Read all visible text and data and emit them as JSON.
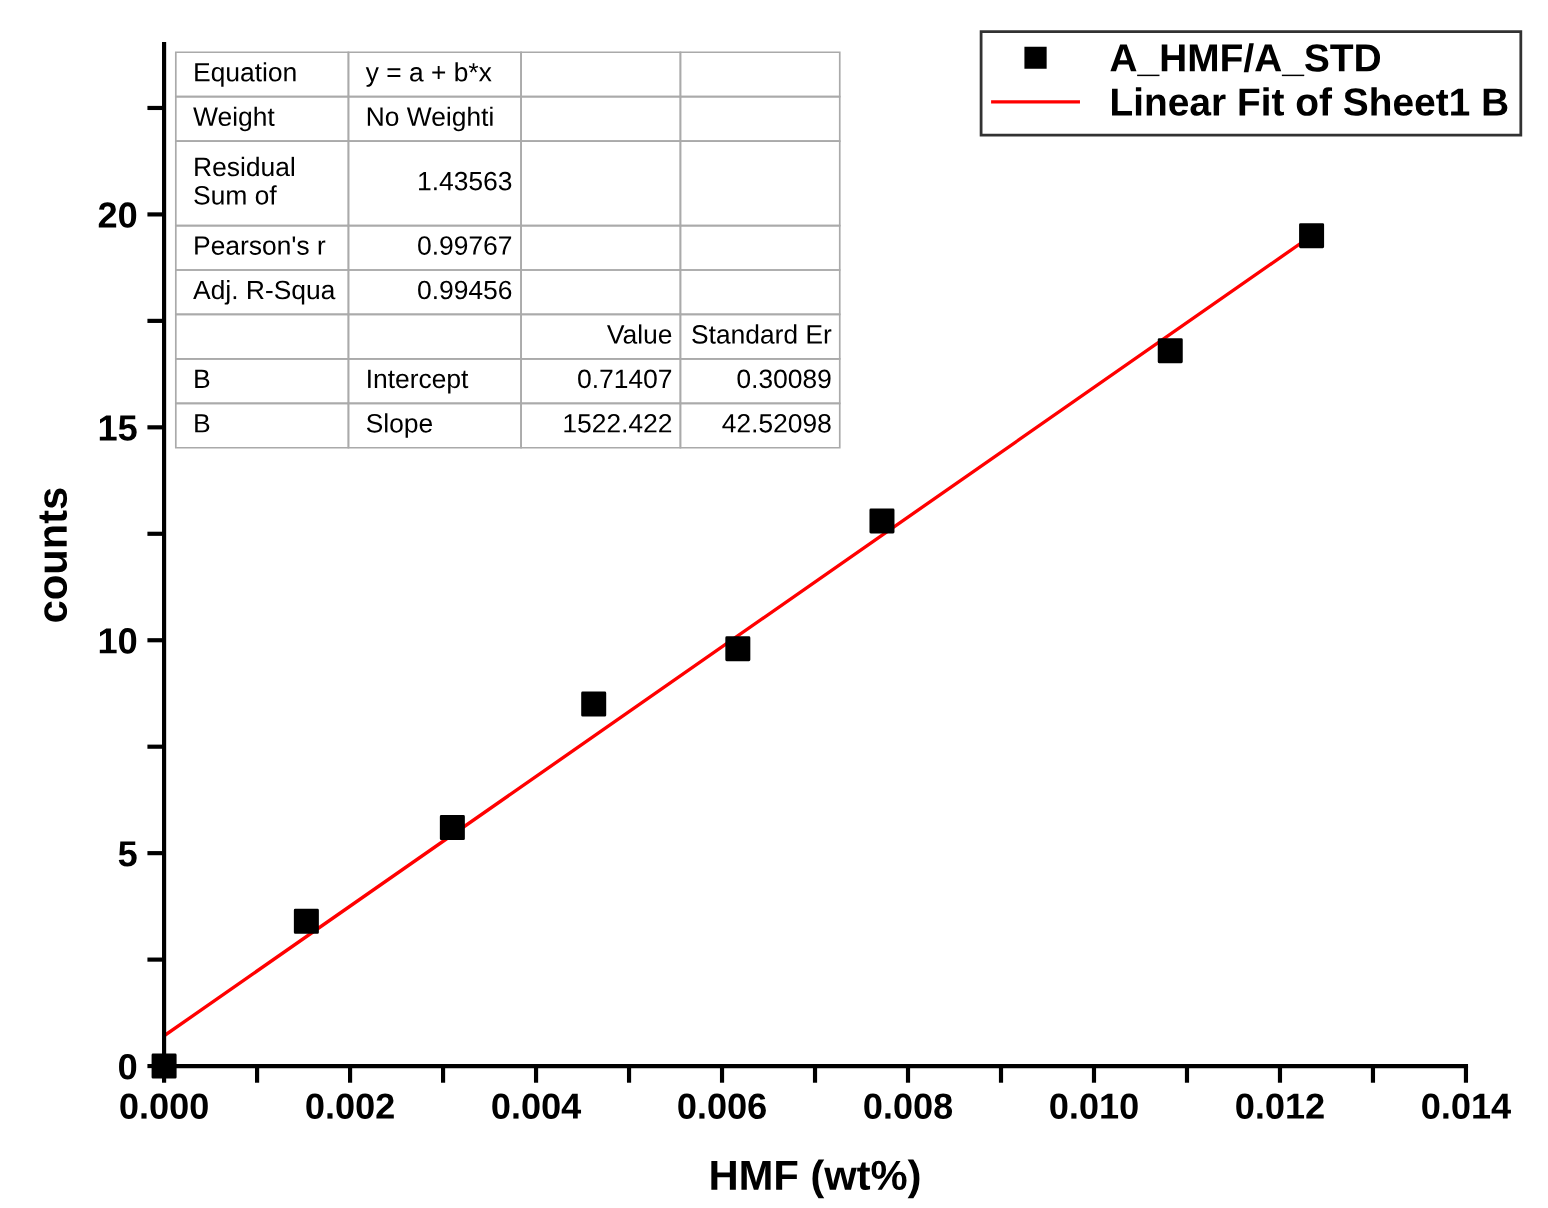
{
  "chart_data": {
    "type": "scatter",
    "xlabel": "HMF (wt%)",
    "ylabel": "counts",
    "xlim": [
      0,
      0.014
    ],
    "ylim": [
      0,
      24
    ],
    "xticks": [
      {
        "value": 0,
        "label": "0.000"
      },
      {
        "value": 0.001,
        "label": null
      },
      {
        "value": 0.002,
        "label": "0.002"
      },
      {
        "value": 0.003,
        "label": null
      },
      {
        "value": 0.004,
        "label": "0.004"
      },
      {
        "value": 0.005,
        "label": null
      },
      {
        "value": 0.006,
        "label": "0.006"
      },
      {
        "value": 0.007,
        "label": null
      },
      {
        "value": 0.008,
        "label": "0.008"
      },
      {
        "value": 0.009,
        "label": null
      },
      {
        "value": 0.01,
        "label": "0.010"
      },
      {
        "value": 0.011,
        "label": null
      },
      {
        "value": 0.012,
        "label": "0.012"
      },
      {
        "value": 0.013,
        "label": null
      },
      {
        "value": 0.014,
        "label": "0.014"
      }
    ],
    "yticks": [
      0,
      {
        "value": 2.5,
        "label": null
      },
      5,
      {
        "value": 7.5,
        "label": null
      },
      10,
      {
        "value": 12.5,
        "label": null
      },
      15,
      {
        "value": 17.5,
        "label": null
      },
      20,
      {
        "value": 22.5,
        "label": null
      }
    ],
    "grid": false,
    "legend": "top right",
    "series": [
      {
        "name": "A_HMF/A_STD",
        "color": "#000000",
        "marker": "square",
        "x": [
          0,
          0.00153,
          0.0031,
          0.00462,
          0.00617,
          0.00772,
          0.01082,
          0.01234
        ],
        "values": [
          0,
          3.4,
          5.6,
          8.5,
          9.8,
          12.8,
          16.8,
          19.5
        ]
      },
      {
        "name": "Linear Fit of Sheet1 B",
        "type": "line",
        "color": "#ff0000",
        "line_style": "solid",
        "marker": "none",
        "x": [
          0,
          0.01234
        ],
        "values": [
          0.71,
          19.5
        ]
      }
    ],
    "annotations": [
      "Equation",
      "y = a + b*x",
      "Weight",
      "No Weighti",
      "Residual Sum of",
      "1.43563",
      "Pearson's r",
      "0.99767",
      "Adj. R-Squa",
      "0.99456",
      "Value",
      "Standard Er",
      "B",
      "Intercept",
      "0.71407",
      "0.30089",
      "B",
      "Slope",
      "1522.422",
      "42.52098"
    ]
  }
}
